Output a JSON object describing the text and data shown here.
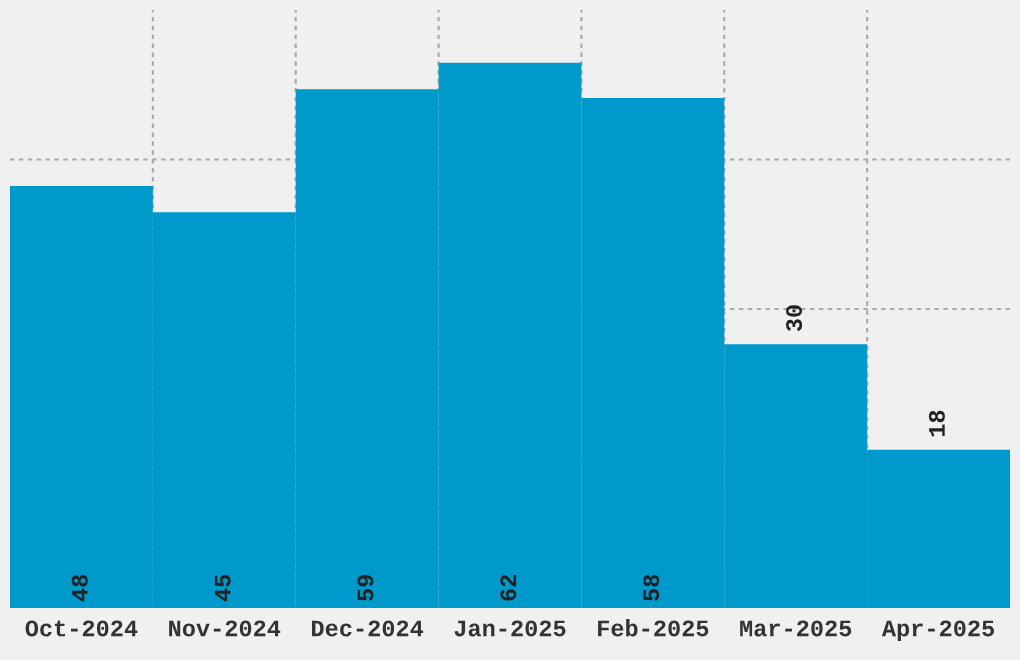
{
  "chart_data": {
    "type": "bar",
    "categories": [
      "Oct-2024",
      "Nov-2024",
      "Dec-2024",
      "Jan-2025",
      "Feb-2025",
      "Mar-2025",
      "Apr-2025"
    ],
    "values": [
      48,
      45,
      59,
      62,
      58,
      30,
      18
    ],
    "color": "#0099cc",
    "data_labels": true,
    "grid": true,
    "ylim": [
      0,
      68
    ]
  }
}
